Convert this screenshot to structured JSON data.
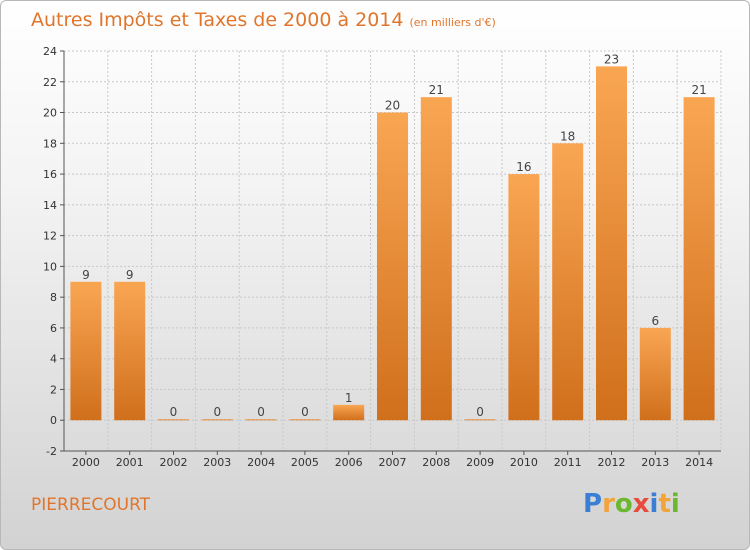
{
  "title": "Autres Impôts et Taxes de 2000 à 2014",
  "subtitle": "(en milliers d'€)",
  "commune": "PIERRECOURT",
  "logo": {
    "letters": [
      "P",
      "r",
      "o",
      "x",
      "i",
      "t",
      "i"
    ],
    "colors": [
      "#3a7fd5",
      "#f2a33a",
      "#6bb82f",
      "#e64b3c",
      "#3a7fd5",
      "#f2a33a",
      "#6bb82f"
    ]
  },
  "colors": {
    "bar_light": "#f9a653",
    "bar_dark": "#d06f1c",
    "title": "#e0762d",
    "grid": "#c8c8c8"
  },
  "chart_data": {
    "type": "bar",
    "title": "Autres Impôts et Taxes de 2000 à 2014",
    "subtitle": "(en milliers d'€)",
    "categories": [
      "2000",
      "2001",
      "2002",
      "2003",
      "2004",
      "2005",
      "2006",
      "2007",
      "2008",
      "2009",
      "2010",
      "2011",
      "2012",
      "2013",
      "2014"
    ],
    "values": [
      9,
      9,
      0,
      0,
      0,
      0,
      1,
      20,
      21,
      0,
      16,
      18,
      23,
      6,
      21
    ],
    "data_labels": [
      "9",
      "9",
      "0",
      "0",
      "0",
      "0",
      "1",
      "20",
      "21",
      "0",
      "16",
      "18",
      "23",
      "6",
      "21"
    ],
    "ylim": [
      -2,
      24
    ],
    "yticks": [
      -2,
      0,
      2,
      4,
      6,
      8,
      10,
      12,
      14,
      16,
      18,
      20,
      22,
      24
    ],
    "grid": true,
    "xlabel": "",
    "ylabel": ""
  }
}
